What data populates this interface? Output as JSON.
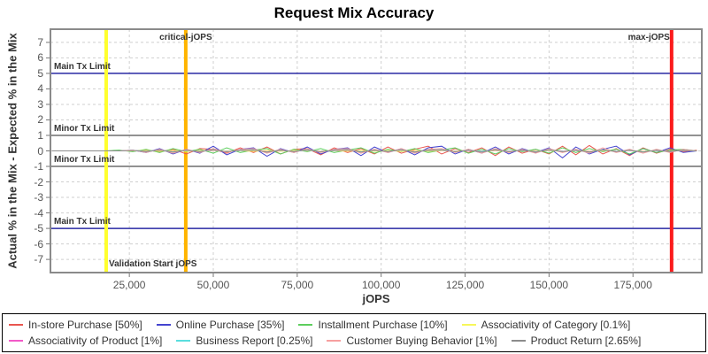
{
  "header": {
    "title": "Request Mix Accuracy"
  },
  "chart_data": {
    "type": "line",
    "title": "Request Mix Accuracy",
    "xlabel": "jOPS",
    "ylabel": "Actual % in the Mix - Expected % in the Mix",
    "xlim": [
      1500,
      195500
    ],
    "ylim": [
      -7.85,
      7.85
    ],
    "grid": "dashed",
    "legend_position": "bottom",
    "x_ticks": [
      25000,
      50000,
      75000,
      100000,
      125000,
      150000,
      175000
    ],
    "x_tick_labels": [
      "25,000",
      "50,000",
      "75,000",
      "100,000",
      "125,000",
      "150,000",
      "175,000"
    ],
    "y_ticks": [
      -7,
      -6,
      -5,
      -4,
      -3,
      -2,
      -1,
      0,
      1,
      2,
      3,
      4,
      5,
      6,
      7
    ],
    "reference_lines_horizontal": [
      {
        "label": "Main Tx Limit",
        "y": 5,
        "color": "#2a2aa5"
      },
      {
        "label": "Minor Tx Limit",
        "y": 1,
        "color": "#6e6e6e"
      },
      {
        "label": "Minor Tx Limit",
        "y": -1,
        "color": "#6e6e6e"
      },
      {
        "label": "Main Tx Limit",
        "y": -5,
        "color": "#2a2aa5"
      }
    ],
    "reference_lines_vertical": [
      {
        "label": "Validation Start jOPS",
        "x": 18100,
        "color": "#ffff2e",
        "label_pos": "bottom-right"
      },
      {
        "label": "critical-jOPS",
        "x": 41800,
        "color": "#ffb400",
        "label_pos": "top-center"
      },
      {
        "label": "max-jOPS",
        "x": 186500,
        "color": "#fb1b1c",
        "label_pos": "top-left"
      }
    ],
    "x": [
      2000,
      6000,
      10000,
      14000,
      18000,
      22000,
      26000,
      30000,
      34000,
      38000,
      42000,
      46000,
      50000,
      54000,
      58000,
      62000,
      66000,
      70000,
      74000,
      78000,
      82000,
      86000,
      90000,
      94000,
      98000,
      102000,
      106000,
      110000,
      114000,
      118000,
      122000,
      126000,
      130000,
      134000,
      138000,
      142000,
      146000,
      150000,
      154000,
      158000,
      162000,
      166000,
      170000,
      174000,
      178000,
      182000,
      186000,
      190000,
      194000
    ],
    "series": [
      {
        "name": "In-store Purchase [50%]",
        "color": "#e9564f",
        "values": [
          0,
          0,
          0,
          0,
          0,
          0,
          0,
          0.05,
          -0.05,
          0.1,
          -0.2,
          0.15,
          0.1,
          -0.15,
          0.2,
          -0.1,
          0.25,
          -0.2,
          0.1,
          0.15,
          -0.25,
          0.2,
          -0.1,
          0.15,
          -0.2,
          0.25,
          -0.15,
          0.1,
          0.3,
          -0.2,
          0.15,
          -0.1,
          0.2,
          -0.3,
          0.25,
          -0.15,
          0.1,
          -0.2,
          0.3,
          -0.25,
          0.35,
          -0.2,
          0.15,
          -0.3,
          0.2,
          -0.15,
          0.1,
          -0.05,
          0.05
        ]
      },
      {
        "name": "Online Purchase [35%]",
        "color": "#4444cf",
        "values": [
          0,
          0,
          0,
          0,
          0,
          0,
          0.05,
          -0.1,
          0.15,
          -0.2,
          0.1,
          -0.15,
          0.3,
          -0.25,
          0.1,
          0.2,
          -0.35,
          0.15,
          -0.1,
          0.25,
          -0.2,
          0.1,
          0.2,
          -0.3,
          0.25,
          -0.1,
          0.15,
          -0.25,
          0.2,
          0.3,
          -0.2,
          0.1,
          -0.15,
          0.25,
          -0.2,
          0.15,
          -0.1,
          0.2,
          -0.45,
          0.25,
          -0.2,
          0.1,
          0.3,
          -0.25,
          0.15,
          -0.1,
          0.2,
          -0.1,
          0
        ]
      },
      {
        "name": "Installment Purchase [10%]",
        "color": "#5dce5d",
        "values": [
          0,
          0,
          0,
          0,
          0,
          0.05,
          -0.05,
          0.1,
          -0.1,
          0.15,
          -0.05,
          0.1,
          -0.15,
          0.2,
          -0.1,
          0.05,
          0.15,
          -0.2,
          0.1,
          -0.05,
          0.15,
          -0.1,
          0.05,
          0.2,
          -0.15,
          0.1,
          -0.05,
          0.15,
          -0.1,
          0.05,
          0.2,
          -0.15,
          0.1,
          -0.2,
          0.15,
          -0.05,
          0.1,
          -0.15,
          0.2,
          -0.1,
          0.15,
          -0.05,
          0.1,
          -0.2,
          0.15,
          -0.1,
          0.05,
          0.1,
          0
        ]
      },
      {
        "name": "Associativity of Category [0.1%]",
        "color": "#f7f75a",
        "values": [
          0,
          0,
          0,
          0,
          0,
          0,
          0,
          0.02,
          -0.02,
          0.03,
          -0.03,
          0.02,
          0.03,
          -0.02,
          0.02,
          -0.03,
          0.03,
          -0.02,
          0.02,
          0.03,
          -0.03,
          0.02,
          -0.02,
          0.03,
          -0.02,
          0.02,
          -0.03,
          0.03,
          -0.02,
          0.02,
          -0.02,
          0.03,
          -0.03,
          0.02,
          -0.02,
          0.03,
          -0.02,
          0.02,
          -0.03,
          0.03,
          -0.02,
          0.02,
          -0.03,
          0.02,
          -0.02,
          0.03,
          -0.02,
          0.02,
          0
        ]
      },
      {
        "name": "Associativity of Product [1%]",
        "color": "#f25ac8",
        "values": [
          0,
          0,
          0,
          0,
          0,
          0,
          0.03,
          -0.03,
          0.05,
          -0.05,
          0.03,
          -0.03,
          0.05,
          -0.05,
          0.03,
          0.05,
          -0.05,
          0.03,
          -0.03,
          0.05,
          -0.05,
          0.03,
          0.05,
          -0.05,
          0.03,
          -0.03,
          0.05,
          -0.05,
          0.03,
          0.05,
          -0.05,
          0.03,
          -0.03,
          0.05,
          -0.03,
          0.03,
          -0.05,
          0.05,
          -0.03,
          0.03,
          -0.05,
          0.05,
          -0.03,
          0.03,
          -0.05,
          0.03,
          -0.03,
          0.03,
          0
        ]
      },
      {
        "name": "Business Report [0.25%]",
        "color": "#5adede",
        "values": [
          0,
          0,
          0,
          0,
          0,
          0,
          0.04,
          -0.04,
          0.06,
          -0.06,
          0.04,
          -0.04,
          0.08,
          -0.06,
          0.04,
          0.06,
          -0.08,
          0.04,
          -0.04,
          0.06,
          -0.06,
          0.04,
          0.08,
          -0.06,
          0.04,
          -0.04,
          0.06,
          -0.08,
          0.04,
          0.06,
          -0.06,
          0.04,
          -0.04,
          0.08,
          -0.04,
          0.04,
          -0.06,
          0.06,
          -0.04,
          0.04,
          -0.08,
          0.06,
          -0.04,
          0.04,
          -0.06,
          0.04,
          -0.04,
          0.04,
          0
        ]
      },
      {
        "name": "Customer Buying Behavior [1%]",
        "color": "#f7a0a0",
        "values": [
          0,
          0,
          0,
          0,
          0,
          0,
          0.05,
          -0.1,
          0.1,
          -0.15,
          0.1,
          -0.1,
          0.15,
          -0.1,
          0.1,
          0.15,
          -0.15,
          0.1,
          -0.1,
          0.15,
          -0.1,
          0.1,
          0.15,
          -0.15,
          0.1,
          -0.1,
          0.15,
          -0.15,
          0.1,
          0.15,
          -0.1,
          0.1,
          -0.15,
          0.15,
          -0.1,
          0.1,
          -0.15,
          0.15,
          -0.1,
          0.1,
          -0.15,
          0.2,
          -0.1,
          0.1,
          -0.15,
          0.1,
          -0.1,
          0.1,
          0
        ]
      },
      {
        "name": "Product Return [2.65%]",
        "color": "#8c8c8c",
        "values": [
          0,
          0,
          0,
          0,
          0,
          0,
          0.03,
          -0.05,
          0.05,
          -0.08,
          0.05,
          -0.05,
          0.08,
          -0.05,
          0.05,
          0.08,
          -0.08,
          0.05,
          -0.05,
          0.08,
          -0.05,
          0.05,
          0.08,
          -0.08,
          0.05,
          -0.05,
          0.08,
          -0.08,
          0.05,
          0.08,
          -0.05,
          0.05,
          -0.08,
          0.08,
          -0.05,
          0.05,
          -0.08,
          0.08,
          -0.05,
          0.05,
          -0.08,
          0.08,
          -0.05,
          0.05,
          -0.08,
          0.05,
          -0.05,
          0.05,
          0
        ]
      }
    ],
    "colors": {
      "grid": "#cfcfcf",
      "plot_border": "#8a8a8a",
      "tick_text": "#555555",
      "title_text": "#000000"
    }
  }
}
